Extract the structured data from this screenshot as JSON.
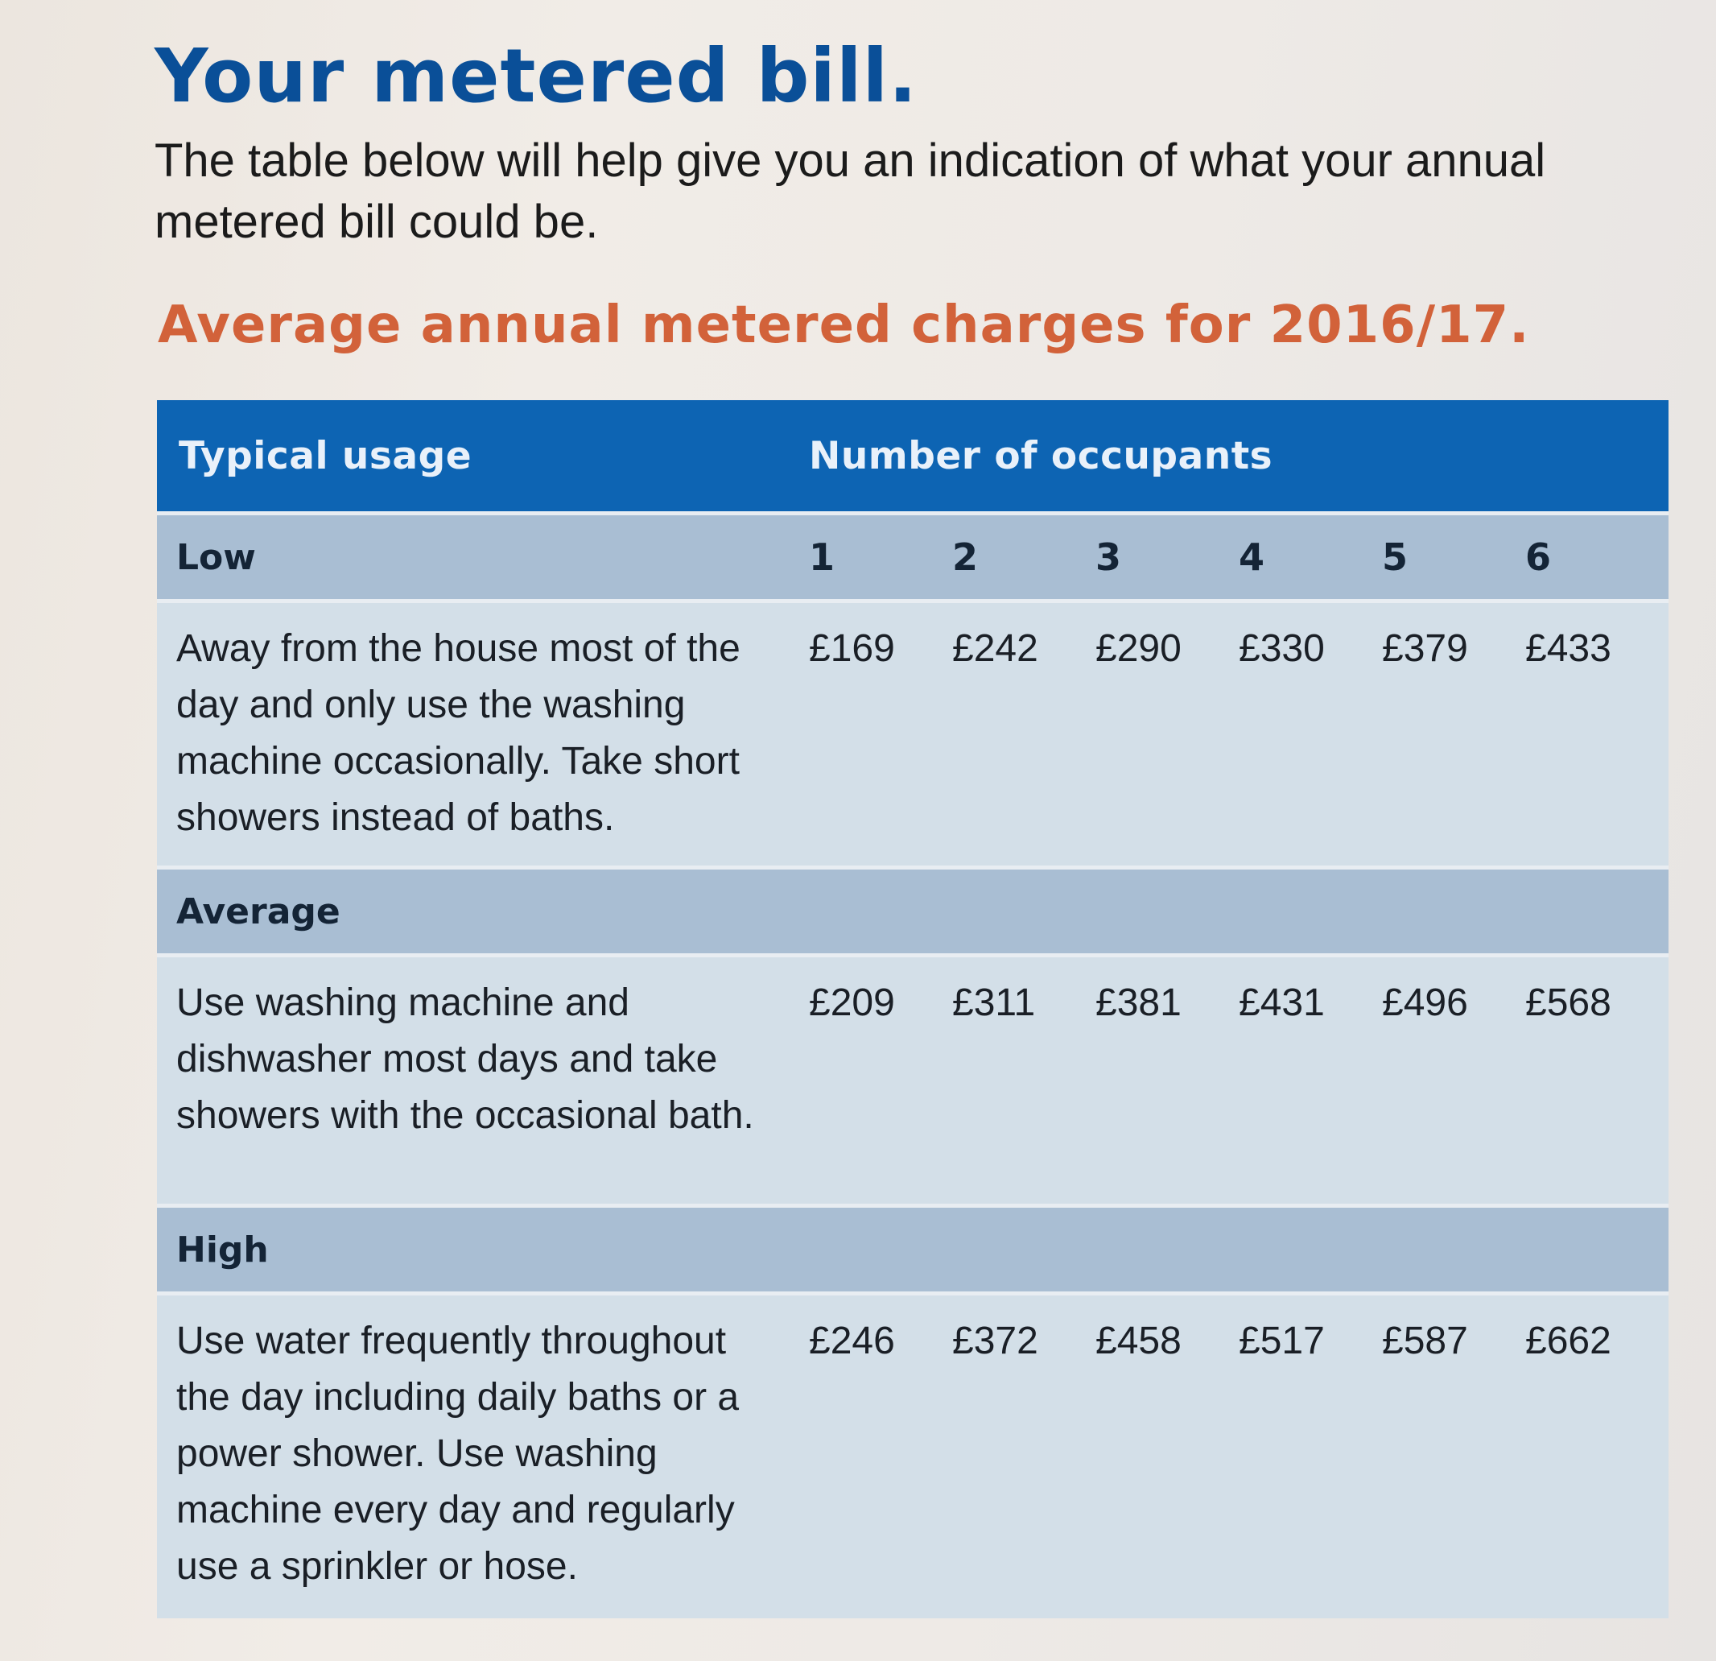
{
  "page": {
    "title": "Your metered bill.",
    "intro": "The table below will help give you an indication of what your annual metered bill could be.",
    "subtitle": "Average annual metered charges for 2016/17."
  },
  "table": {
    "header_usage": "Typical usage",
    "header_occupants": "Number of occupants",
    "occupant_numbers": [
      "1",
      "2",
      "3",
      "4",
      "5",
      "6"
    ],
    "rows": [
      {
        "category": "Low",
        "description": "Away from the house most of the day and only use the washing machine occasionally. Take short showers instead of baths.",
        "prices": [
          "£169",
          "£242",
          "£290",
          "£330",
          "£379",
          "£433"
        ]
      },
      {
        "category": "Average",
        "description": "Use washing machine and dishwasher most days and take showers with the occasional bath.",
        "prices": [
          "£209",
          "£311",
          "£381",
          "£431",
          "£496",
          "£568"
        ]
      },
      {
        "category": "High",
        "description": "Use water frequently throughout the day including daily baths or a power shower. Use washing machine every day and regularly use a sprinkler or hose.",
        "prices": [
          "£246",
          "£372",
          "£458",
          "£517",
          "£587",
          "£662"
        ]
      }
    ]
  },
  "colors": {
    "title_blue": "#0a4f98",
    "subtitle_orange": "#d2623a",
    "header_blue": "#0d64b3",
    "category_band": "#a9bed3",
    "description_band": "#d3dfe8"
  }
}
